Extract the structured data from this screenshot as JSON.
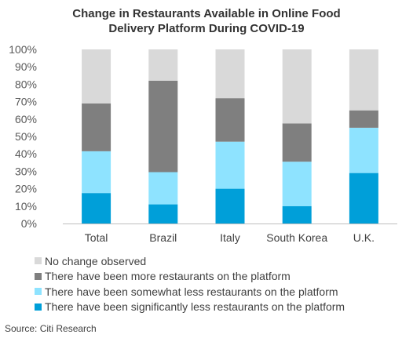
{
  "chart_data": {
    "type": "stacked-bar",
    "title": [
      "Change in Restaurants Available in Online Food",
      "Delivery Platform During COVID-19"
    ],
    "categories": [
      "Total",
      "Brazil",
      "Italy",
      "South Korea",
      "U.K."
    ],
    "y_ticks": [
      "0%",
      "10%",
      "20%",
      "30%",
      "40%",
      "50%",
      "60%",
      "70%",
      "80%",
      "90%",
      "100%"
    ],
    "ylim": [
      0,
      100
    ],
    "stacked": true,
    "grid": false,
    "legend_position": "bottom",
    "series": [
      {
        "name": "There have been significantly less restaurants on the platform",
        "color": "#009fd9",
        "values": [
          17.5,
          11,
          20,
          10,
          29
        ]
      },
      {
        "name": "There have been somewhat less restaurants on the platform",
        "color": "#8ee3ff",
        "values": [
          24,
          18.5,
          27,
          25.5,
          26
        ]
      },
      {
        "name": "There have been more restaurants on the platform",
        "color": "#7f7f7f",
        "values": [
          27.5,
          52.5,
          25,
          22,
          10
        ]
      },
      {
        "name": "No change observed",
        "color": "#d9d9d9",
        "values": [
          31,
          18,
          28,
          42.5,
          35
        ]
      }
    ],
    "legend_order": [
      3,
      2,
      1,
      0
    ]
  },
  "source": "Source: Citi Research"
}
